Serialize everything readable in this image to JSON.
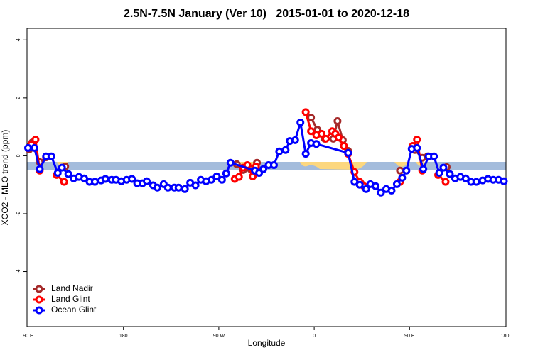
{
  "chart_data": {
    "type": "line",
    "title": "2.5N-7.5N January (Ver 10)   2015-01-01 to 2020-12-18",
    "x_label": "Longitude",
    "y_label": "XCO2 - MLO trend (ppm)",
    "xlim": [
      89,
      541
    ],
    "ylim": [
      -5.9,
      4.4
    ],
    "xticks": [
      {
        "value": 90,
        "label": "90 E"
      },
      180,
      {
        "value": 270,
        "label": "90 W"
      },
      {
        "value": 360,
        "label": "0"
      },
      {
        "value": 450,
        "label": "90 E"
      },
      {
        "value": 540,
        "label": "180"
      }
    ],
    "yticks": [
      -4,
      -2,
      0,
      2,
      4
    ],
    "legend": "bottom-left",
    "series": [
      {
        "name": "Land Nadir",
        "color": "#a52a2a",
        "x": [
          91,
          94,
          101,
          107,
          null,
          125,
          null,
          287,
          293,
          300,
          306,
          null,
          357,
          363,
          370,
          378,
          382,
          387,
          392,
          null,
          404,
          null,
          441,
          null,
          455,
          462,
          467,
          null,
          485
        ],
        "values": [
          0.22,
          0.46,
          -0.22,
          -0.05,
          null,
          -0.37,
          null,
          -0.29,
          -0.49,
          -0.46,
          -0.24,
          null,
          1.32,
          0.9,
          0.59,
          0.59,
          1.2,
          0.54,
          0.17,
          null,
          -0.95,
          null,
          -0.51,
          null,
          0.2,
          -0.07,
          -0.02,
          null,
          -0.39
        ]
      },
      {
        "name": "Land Glint",
        "color": "#ff0000",
        "x": [
          93,
          97,
          101,
          null,
          117,
          124,
          null,
          285,
          289,
          293,
          297,
          302,
          305,
          null,
          352,
          357,
          362,
          367,
          371,
          377,
          380,
          383,
          388,
          392,
          398,
          403,
          407,
          null,
          441,
          null,
          453,
          457,
          462,
          null,
          477,
          484
        ],
        "values": [
          0.39,
          0.56,
          -0.51,
          null,
          -0.66,
          -0.9,
          null,
          -0.8,
          -0.73,
          -0.41,
          -0.32,
          -0.71,
          -0.37,
          null,
          1.51,
          0.85,
          0.71,
          0.76,
          0.59,
          0.85,
          0.76,
          0.63,
          0.34,
          0.07,
          -0.56,
          -0.9,
          -1.05,
          null,
          -0.9,
          null,
          0.34,
          0.56,
          -0.51,
          null,
          -0.66,
          -0.9
        ]
      },
      {
        "name": "Ocean Glint",
        "color": "#0000ff",
        "x": [
          90,
          96,
          101,
          107,
          112,
          118,
          122,
          128,
          133,
          138,
          143,
          148,
          153,
          159,
          163,
          169,
          173,
          178,
          183,
          188,
          193,
          198,
          202,
          208,
          212,
          218,
          222,
          228,
          232,
          238,
          243,
          248,
          253,
          258,
          263,
          268,
          273,
          277,
          281,
          304,
          308,
          312,
          317,
          322,
          327,
          333,
          337,
          342,
          347,
          352,
          357,
          362,
          392,
          398,
          403,
          409,
          413,
          418,
          423,
          428,
          433,
          438,
          443,
          447,
          452,
          457,
          463,
          468,
          473,
          478,
          482,
          488,
          493,
          498,
          503,
          508,
          513,
          519,
          524,
          529,
          534,
          539
        ],
        "values": [
          0.27,
          0.27,
          -0.46,
          -0.02,
          -0.02,
          -0.59,
          -0.41,
          -0.63,
          -0.78,
          -0.73,
          -0.78,
          -0.9,
          -0.9,
          -0.85,
          -0.8,
          -0.83,
          -0.83,
          -0.88,
          -0.83,
          -0.8,
          -0.95,
          -0.95,
          -0.88,
          -1.02,
          -1.1,
          -0.98,
          -1.1,
          -1.1,
          -1.1,
          -1.15,
          -0.93,
          -1.02,
          -0.83,
          -0.88,
          -0.83,
          -0.71,
          -0.83,
          -0.61,
          -0.24,
          -0.51,
          -0.59,
          -0.46,
          -0.32,
          -0.32,
          0.15,
          0.2,
          0.51,
          0.54,
          1.15,
          0.07,
          0.44,
          0.41,
          0.1,
          -0.9,
          -1.0,
          -1.15,
          -0.98,
          -1.05,
          -1.27,
          -1.15,
          -1.2,
          -0.98,
          -0.76,
          -0.51,
          0.24,
          0.27,
          -0.46,
          -0.02,
          -0.02,
          -0.59,
          -0.41,
          -0.63,
          -0.78,
          -0.73,
          -0.78,
          -0.9,
          -0.9,
          -0.85,
          -0.8,
          -0.83,
          -0.83,
          -0.88
        ]
      }
    ]
  }
}
